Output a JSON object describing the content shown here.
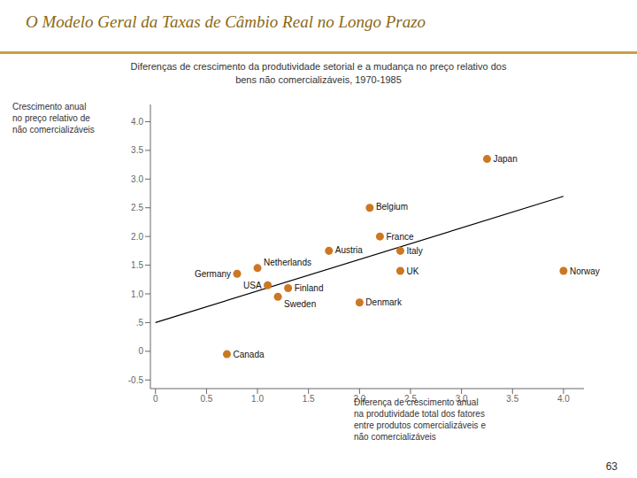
{
  "chart_data": {
    "type": "scatter",
    "title": "O Modelo Geral da Taxas de Câmbio Real no Longo Prazo",
    "subtitle": "Diferenças de crescimento da produtividade setorial e a mudança no preço relativo dos\nbens não comercializáveis, 1970-1985",
    "ylabel": "Crescimento anual\nno preço relativo de\nnão comercializáveis",
    "xlabel": "Diferença de crescimento anual\nna produtividade total dos fatores\nentre produtos comercializáveis e\nnão comercializáveis",
    "annotations": [
      "63"
    ],
    "series": [
      {
        "type": "scatter",
        "color": "#CC7722",
        "labels": [
          "Germany",
          "Netherlands",
          "USA",
          "Sweden",
          "Canada",
          "Finland",
          "Austria",
          "Belgium",
          "France",
          "Denmark",
          "Italy",
          "UK",
          "Japan",
          "Norway"
        ],
        "x": [
          0.8,
          1.0,
          1.1,
          1.2,
          0.7,
          1.3,
          1.7,
          2.1,
          2.2,
          2.0,
          2.4,
          2.4,
          3.25,
          4.0
        ],
        "values": [
          1.35,
          1.45,
          1.15,
          0.95,
          -0.05,
          1.1,
          1.75,
          2.5,
          2.0,
          0.85,
          1.75,
          1.4,
          3.35,
          1.4
        ]
      },
      {
        "type": "line",
        "color": "#000000",
        "x": [
          0,
          4.0
        ],
        "values": [
          0.5,
          2.7
        ]
      }
    ],
    "xlim": [
      -0.05,
      4.2
    ],
    "ylim": [
      -0.65,
      4.3
    ],
    "xticks": [
      0,
      0.5,
      {
        "value": 1.0,
        "label": "1.0"
      },
      1.5,
      {
        "value": 2.0,
        "label": "2.0"
      },
      2.5,
      {
        "value": 3.0,
        "label": "3.0"
      },
      3.5,
      {
        "value": 4.0,
        "label": "4.0"
      }
    ],
    "yticks": [
      -0.5,
      0,
      {
        "value": 0.5,
        "label": ".5"
      },
      {
        "value": 1.0,
        "label": "1.0"
      },
      1.5,
      {
        "value": 2.0,
        "label": "2.0"
      },
      2.5,
      {
        "value": 3.0,
        "label": "3.0"
      },
      3.5,
      {
        "value": 4.0,
        "label": "4.0"
      }
    ]
  }
}
